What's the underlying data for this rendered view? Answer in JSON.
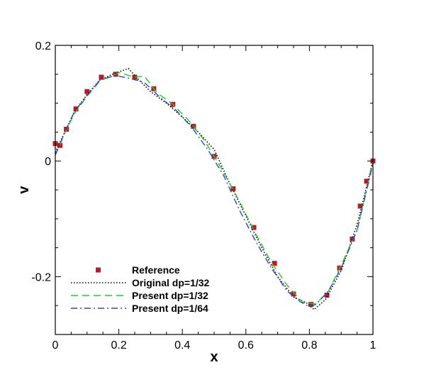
{
  "chart_data": {
    "type": "line",
    "xlabel": "x",
    "ylabel": "v",
    "xlim": [
      0,
      1
    ],
    "ylim": [
      -0.3,
      0.2
    ],
    "x_ticks": [
      0,
      0.2,
      0.4,
      0.6,
      0.8,
      1
    ],
    "x_tick_labels": [
      "0",
      "0.2",
      "0.4",
      "0.6",
      "0.8",
      "1"
    ],
    "y_ticks": [
      -0.2,
      0,
      0.2
    ],
    "y_tick_labels": [
      "-0.2",
      "0",
      "0.2"
    ],
    "grid": false,
    "legend_position": "bottom-left",
    "series": [
      {
        "name": "Reference",
        "style": "markers",
        "color": "#c0182a",
        "x": [
          0,
          0.015,
          0.035,
          0.065,
          0.1,
          0.145,
          0.19,
          0.25,
          0.31,
          0.37,
          0.435,
          0.5,
          0.56,
          0.625,
          0.69,
          0.75,
          0.805,
          0.855,
          0.895,
          0.935,
          0.96,
          0.98,
          1.0
        ],
        "y": [
          0.03,
          0.027,
          0.055,
          0.09,
          0.12,
          0.145,
          0.15,
          0.145,
          0.125,
          0.098,
          0.06,
          0.008,
          -0.048,
          -0.115,
          -0.177,
          -0.23,
          -0.248,
          -0.232,
          -0.185,
          -0.135,
          -0.078,
          -0.035,
          0
        ]
      },
      {
        "name": "Original dp=1/32",
        "style": "dotted",
        "color": "#000000",
        "x": [
          0,
          0.03,
          0.06,
          0.1,
          0.14,
          0.18,
          0.23,
          0.26,
          0.3,
          0.35,
          0.4,
          0.45,
          0.5,
          0.55,
          0.6,
          0.65,
          0.7,
          0.75,
          0.79,
          0.815,
          0.85,
          0.9,
          0.95,
          1.0
        ],
        "y": [
          0.015,
          0.05,
          0.085,
          0.115,
          0.14,
          0.15,
          0.16,
          0.142,
          0.12,
          0.1,
          0.076,
          0.05,
          0.02,
          -0.04,
          -0.095,
          -0.15,
          -0.2,
          -0.235,
          -0.245,
          -0.257,
          -0.24,
          -0.19,
          -0.11,
          0
        ]
      },
      {
        "name": "Present dp=1/32",
        "style": "dashed",
        "color": "#22cc22",
        "x": [
          0,
          0.03,
          0.06,
          0.1,
          0.14,
          0.2,
          0.25,
          0.28,
          0.32,
          0.37,
          0.42,
          0.47,
          0.52,
          0.58,
          0.63,
          0.68,
          0.73,
          0.78,
          0.82,
          0.86,
          0.9,
          0.95,
          1.0
        ],
        "y": [
          0.01,
          0.048,
          0.082,
          0.112,
          0.138,
          0.153,
          0.145,
          0.147,
          0.118,
          0.098,
          0.07,
          0.035,
          -0.01,
          -0.07,
          -0.125,
          -0.175,
          -0.215,
          -0.245,
          -0.247,
          -0.225,
          -0.18,
          -0.12,
          0
        ]
      },
      {
        "name": "Present dp=1/64",
        "style": "dashdot",
        "color": "#3344cc",
        "x": [
          0,
          0.03,
          0.06,
          0.1,
          0.14,
          0.19,
          0.24,
          0.28,
          0.33,
          0.38,
          0.43,
          0.48,
          0.53,
          0.58,
          0.63,
          0.68,
          0.73,
          0.77,
          0.8,
          0.82,
          0.86,
          0.9,
          0.95,
          1.0
        ],
        "y": [
          0.01,
          0.05,
          0.085,
          0.113,
          0.14,
          0.148,
          0.142,
          0.136,
          0.11,
          0.088,
          0.058,
          0.02,
          -0.025,
          -0.085,
          -0.138,
          -0.185,
          -0.225,
          -0.243,
          -0.252,
          -0.248,
          -0.225,
          -0.185,
          -0.12,
          -0.005
        ]
      }
    ]
  }
}
